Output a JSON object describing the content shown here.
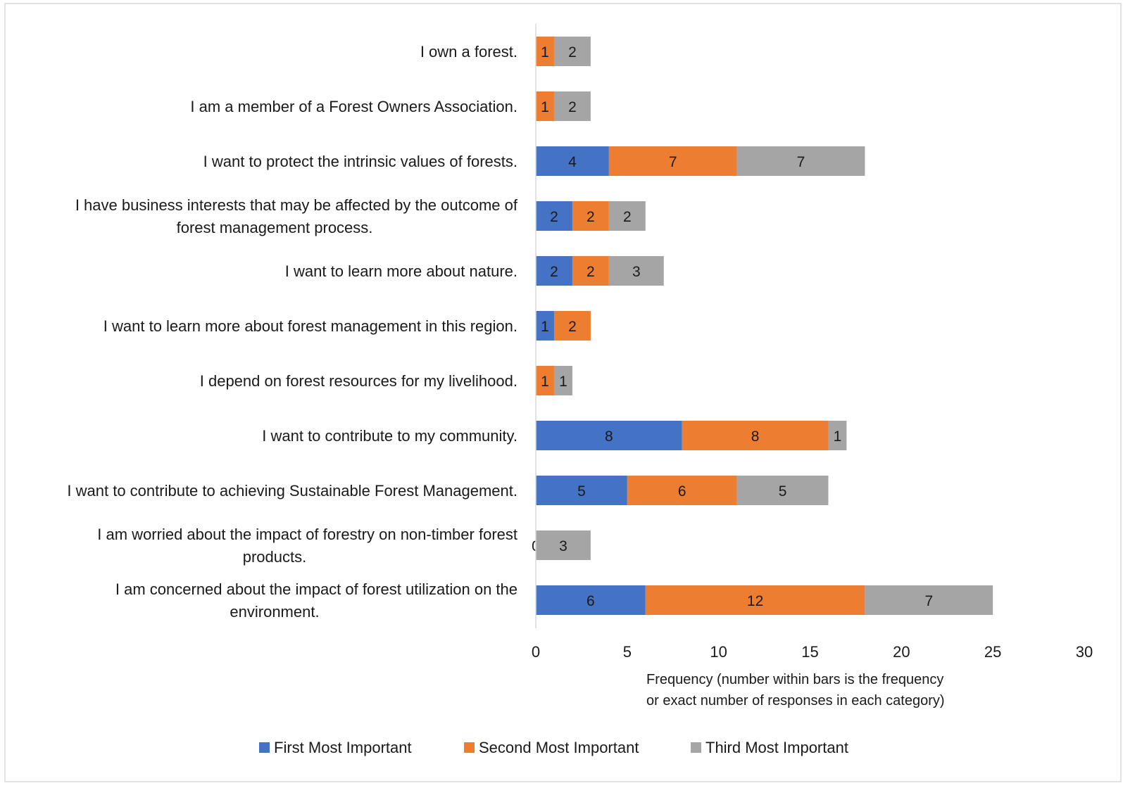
{
  "chart_data": {
    "type": "bar",
    "orientation": "horizontal",
    "stacked": true,
    "categories": [
      [
        "I own a forest."
      ],
      [
        "I am a member of a Forest Owners Association."
      ],
      [
        "I want to protect the intrinsic values of forests."
      ],
      [
        "I have business interests that may be affected by the outcome of",
        "forest management process."
      ],
      [
        "I want to learn more about nature."
      ],
      [
        "I want to learn more about forest management in this region."
      ],
      [
        "I depend on forest resources for my livelihood."
      ],
      [
        "I want to contribute to my community."
      ],
      [
        "I want to contribute to achieving Sustainable Forest Management."
      ],
      [
        "I am worried about the impact of forestry on non-timber forest",
        "products."
      ],
      [
        "I am concerned about the impact of forest utilization on the",
        "environment."
      ]
    ],
    "series": [
      {
        "name": "First Most Important",
        "color": "#4472C4",
        "values": [
          null,
          null,
          4,
          2,
          2,
          1,
          null,
          8,
          5,
          0,
          6
        ]
      },
      {
        "name": "Second Most Important",
        "color": "#ED7D31",
        "values": [
          1,
          1,
          7,
          2,
          2,
          2,
          1,
          8,
          6,
          null,
          12
        ]
      },
      {
        "name": "Third Most Important",
        "color": "#A5A5A5",
        "values": [
          2,
          2,
          7,
          2,
          3,
          null,
          1,
          1,
          5,
          3,
          7
        ]
      }
    ],
    "xlim": [
      0,
      30
    ],
    "xticks": [
      0,
      5,
      10,
      15,
      20,
      25,
      30
    ],
    "xlabel": [
      "Frequency (number within bars is the frequency",
      "or exact number  of responses in each category)"
    ],
    "legend_position": "bottom",
    "grid": false
  }
}
